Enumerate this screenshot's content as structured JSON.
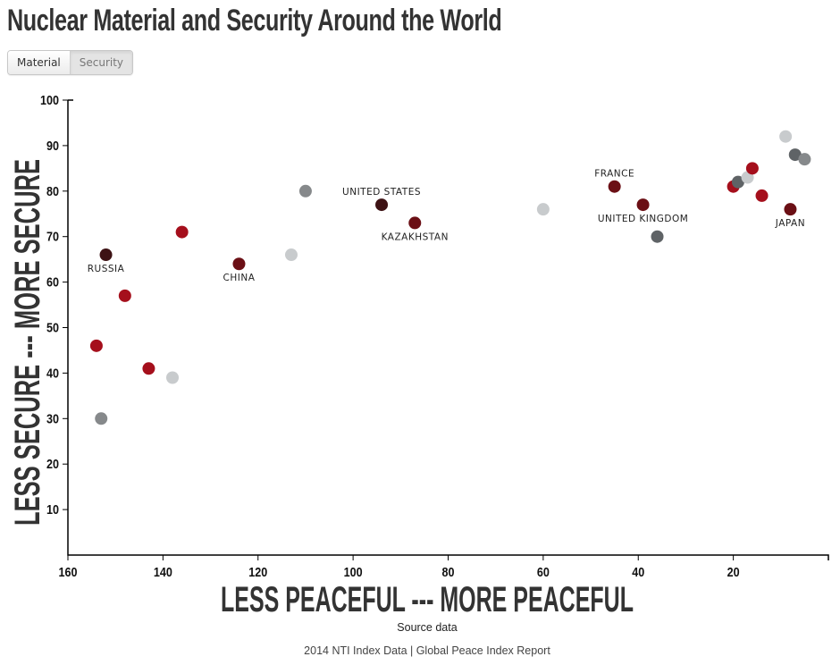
{
  "header": {
    "title": "Nuclear Material and Security Around the World"
  },
  "toggle": {
    "buttons": [
      {
        "label": "Material",
        "active": false
      },
      {
        "label": "Security",
        "active": true
      }
    ]
  },
  "footer": {
    "source_label": "Source data",
    "sources": "2014 NTI Index Data | Global Peace Index Report"
  },
  "colors": {
    "darkest": "#3d1214",
    "dark_red": "#6b0f15",
    "red": "#a50f1c",
    "dark_gray": "#5f6366",
    "gray": "#86898b",
    "light_gray": "#c8cbcd"
  },
  "chart_data": {
    "type": "scatter",
    "xlabel": "LESS PEACEFUL --- MORE PEACEFUL",
    "ylabel": "LESS SECURE --- MORE SECURE",
    "xlim": [
      160,
      0
    ],
    "ylim": [
      0,
      100
    ],
    "x_reversed": true,
    "xticks": [
      160,
      140,
      120,
      100,
      80,
      60,
      40,
      20
    ],
    "yticks": [
      10,
      20,
      30,
      40,
      50,
      60,
      70,
      80,
      90,
      100
    ],
    "grid": false,
    "points": [
      {
        "x": 152,
        "y": 66,
        "color": "darkest",
        "label": "RUSSIA",
        "label_pos": "below"
      },
      {
        "x": 148,
        "y": 57,
        "color": "red"
      },
      {
        "x": 154,
        "y": 46,
        "color": "red"
      },
      {
        "x": 143,
        "y": 41,
        "color": "red"
      },
      {
        "x": 138,
        "y": 39,
        "color": "light_gray"
      },
      {
        "x": 153,
        "y": 30,
        "color": "gray"
      },
      {
        "x": 136,
        "y": 71,
        "color": "red"
      },
      {
        "x": 124,
        "y": 64,
        "color": "dark_red",
        "label": "CHINA",
        "label_pos": "below"
      },
      {
        "x": 113,
        "y": 66,
        "color": "light_gray"
      },
      {
        "x": 110,
        "y": 80,
        "color": "gray"
      },
      {
        "x": 94,
        "y": 77,
        "color": "darkest",
        "label": "UNITED STATES",
        "label_pos": "above"
      },
      {
        "x": 87,
        "y": 73,
        "color": "dark_red",
        "label": "KAZAKHSTAN",
        "label_pos": "below"
      },
      {
        "x": 60,
        "y": 76,
        "color": "light_gray"
      },
      {
        "x": 45,
        "y": 81,
        "color": "dark_red",
        "label": "FRANCE",
        "label_pos": "above"
      },
      {
        "x": 39,
        "y": 77,
        "color": "dark_red",
        "label": "UNITED KINGDOM",
        "label_pos": "below"
      },
      {
        "x": 36,
        "y": 70,
        "color": "dark_gray"
      },
      {
        "x": 20,
        "y": 81,
        "color": "red"
      },
      {
        "x": 19,
        "y": 82,
        "color": "dark_gray"
      },
      {
        "x": 17,
        "y": 83,
        "color": "light_gray"
      },
      {
        "x": 16,
        "y": 85,
        "color": "red"
      },
      {
        "x": 14,
        "y": 79,
        "color": "red"
      },
      {
        "x": 8,
        "y": 76,
        "color": "dark_red",
        "label": "JAPAN",
        "label_pos": "below"
      },
      {
        "x": 9,
        "y": 92,
        "color": "light_gray"
      },
      {
        "x": 7,
        "y": 88,
        "color": "dark_gray"
      },
      {
        "x": 5,
        "y": 87,
        "color": "gray"
      }
    ]
  }
}
